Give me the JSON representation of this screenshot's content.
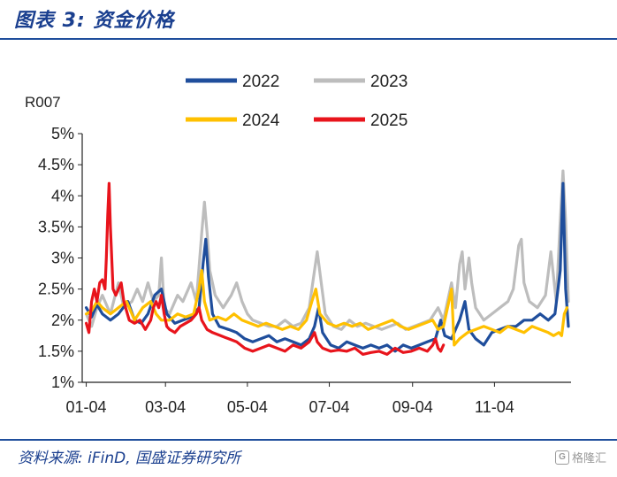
{
  "figure": {
    "title": "图表 3:  资金价格",
    "source": "资料来源:  iFinD,  国盛证券研究所",
    "watermark_icon": "G",
    "watermark_text": "格隆汇"
  },
  "chart_data": {
    "type": "line",
    "ylabel": "R007",
    "xlabel": "",
    "ylim": [
      1,
      5
    ],
    "yticks": [
      "1%",
      "1.5%",
      "2%",
      "2.5%",
      "3%",
      "3.5%",
      "4%",
      "4.5%",
      "5%"
    ],
    "x_unit": "day-of-year",
    "xlim": [
      1,
      365
    ],
    "xticks": [
      {
        "label": "01-04",
        "x": 4
      },
      {
        "label": "03-04",
        "x": 63
      },
      {
        "label": "05-04",
        "x": 124
      },
      {
        "label": "07-04",
        "x": 185
      },
      {
        "label": "09-04",
        "x": 247
      },
      {
        "label": "11-04",
        "x": 308
      }
    ],
    "legend_position": "top",
    "series": [
      {
        "name": "2022",
        "color": "#1f4e9c",
        "points": [
          [
            4,
            2.2
          ],
          [
            8,
            2.05
          ],
          [
            12,
            2.25
          ],
          [
            16,
            2.1
          ],
          [
            22,
            2.0
          ],
          [
            28,
            2.1
          ],
          [
            35,
            2.3
          ],
          [
            40,
            2.0
          ],
          [
            45,
            1.95
          ],
          [
            50,
            2.1
          ],
          [
            55,
            2.4
          ],
          [
            60,
            2.5
          ],
          [
            64,
            2.1
          ],
          [
            70,
            1.95
          ],
          [
            76,
            2.0
          ],
          [
            82,
            2.05
          ],
          [
            88,
            2.2
          ],
          [
            91,
            2.9
          ],
          [
            93,
            3.3
          ],
          [
            95,
            2.7
          ],
          [
            98,
            2.1
          ],
          [
            103,
            1.9
          ],
          [
            110,
            1.85
          ],
          [
            116,
            1.8
          ],
          [
            122,
            1.7
          ],
          [
            128,
            1.65
          ],
          [
            134,
            1.7
          ],
          [
            140,
            1.75
          ],
          [
            146,
            1.65
          ],
          [
            152,
            1.7
          ],
          [
            158,
            1.65
          ],
          [
            164,
            1.6
          ],
          [
            170,
            1.7
          ],
          [
            174,
            1.9
          ],
          [
            177,
            2.2
          ],
          [
            180,
            1.8
          ],
          [
            186,
            1.6
          ],
          [
            192,
            1.55
          ],
          [
            198,
            1.65
          ],
          [
            204,
            1.6
          ],
          [
            210,
            1.55
          ],
          [
            216,
            1.6
          ],
          [
            222,
            1.55
          ],
          [
            228,
            1.6
          ],
          [
            234,
            1.5
          ],
          [
            240,
            1.6
          ],
          [
            246,
            1.55
          ],
          [
            252,
            1.6
          ],
          [
            258,
            1.65
          ],
          [
            264,
            1.7
          ],
          [
            268,
            2.0
          ],
          [
            271,
            1.75
          ],
          [
            276,
            1.7
          ],
          [
            282,
            2.0
          ],
          [
            286,
            2.3
          ],
          [
            289,
            1.85
          ],
          [
            294,
            1.7
          ],
          [
            300,
            1.6
          ],
          [
            306,
            1.8
          ],
          [
            312,
            1.85
          ],
          [
            318,
            1.9
          ],
          [
            324,
            1.9
          ],
          [
            330,
            2.0
          ],
          [
            336,
            2.0
          ],
          [
            342,
            2.1
          ],
          [
            348,
            2.0
          ],
          [
            353,
            2.1
          ],
          [
            357,
            2.8
          ],
          [
            359,
            4.2
          ],
          [
            361,
            2.5
          ],
          [
            363,
            1.9
          ]
        ]
      },
      {
        "name": "2023",
        "color": "#bdbdbd",
        "points": [
          [
            4,
            2.1
          ],
          [
            8,
            1.9
          ],
          [
            12,
            2.2
          ],
          [
            16,
            2.4
          ],
          [
            22,
            2.1
          ],
          [
            28,
            2.6
          ],
          [
            32,
            2.2
          ],
          [
            38,
            2.3
          ],
          [
            42,
            2.5
          ],
          [
            46,
            2.3
          ],
          [
            50,
            2.6
          ],
          [
            54,
            2.3
          ],
          [
            58,
            2.4
          ],
          [
            60,
            3.0
          ],
          [
            62,
            2.2
          ],
          [
            66,
            2.1
          ],
          [
            72,
            2.4
          ],
          [
            76,
            2.3
          ],
          [
            82,
            2.6
          ],
          [
            86,
            2.3
          ],
          [
            90,
            3.4
          ],
          [
            92,
            3.9
          ],
          [
            94,
            3.4
          ],
          [
            96,
            2.8
          ],
          [
            100,
            2.4
          ],
          [
            106,
            2.2
          ],
          [
            112,
            2.4
          ],
          [
            116,
            2.6
          ],
          [
            120,
            2.3
          ],
          [
            124,
            2.1
          ],
          [
            128,
            2.0
          ],
          [
            134,
            1.95
          ],
          [
            140,
            1.9
          ],
          [
            146,
            1.9
          ],
          [
            152,
            2.0
          ],
          [
            158,
            1.9
          ],
          [
            164,
            1.95
          ],
          [
            170,
            2.2
          ],
          [
            174,
            2.8
          ],
          [
            176,
            3.1
          ],
          [
            179,
            2.6
          ],
          [
            182,
            2.1
          ],
          [
            188,
            1.9
          ],
          [
            194,
            1.85
          ],
          [
            200,
            2.0
          ],
          [
            206,
            1.9
          ],
          [
            212,
            1.95
          ],
          [
            218,
            1.9
          ],
          [
            224,
            1.85
          ],
          [
            230,
            1.9
          ],
          [
            236,
            1.95
          ],
          [
            242,
            1.85
          ],
          [
            248,
            1.9
          ],
          [
            254,
            1.95
          ],
          [
            260,
            2.0
          ],
          [
            266,
            2.2
          ],
          [
            270,
            2.0
          ],
          [
            276,
            2.6
          ],
          [
            279,
            2.2
          ],
          [
            282,
            2.9
          ],
          [
            284,
            3.1
          ],
          [
            286,
            2.5
          ],
          [
            289,
            3.0
          ],
          [
            291,
            2.6
          ],
          [
            294,
            2.2
          ],
          [
            300,
            2.0
          ],
          [
            306,
            2.1
          ],
          [
            312,
            2.2
          ],
          [
            318,
            2.3
          ],
          [
            322,
            2.5
          ],
          [
            326,
            3.2
          ],
          [
            328,
            3.3
          ],
          [
            330,
            2.6
          ],
          [
            334,
            2.3
          ],
          [
            340,
            2.2
          ],
          [
            346,
            2.4
          ],
          [
            350,
            3.1
          ],
          [
            354,
            2.3
          ],
          [
            357,
            3.6
          ],
          [
            359,
            4.4
          ],
          [
            361,
            3.6
          ],
          [
            363,
            2.3
          ]
        ]
      },
      {
        "name": "2024",
        "color": "#ffc000",
        "points": [
          [
            4,
            2.1
          ],
          [
            8,
            2.15
          ],
          [
            12,
            2.3
          ],
          [
            16,
            2.2
          ],
          [
            22,
            2.1
          ],
          [
            28,
            2.2
          ],
          [
            34,
            2.3
          ],
          [
            40,
            2.0
          ],
          [
            46,
            2.2
          ],
          [
            52,
            2.3
          ],
          [
            56,
            2.1
          ],
          [
            60,
            2.0
          ],
          [
            66,
            2.0
          ],
          [
            72,
            2.1
          ],
          [
            78,
            2.05
          ],
          [
            84,
            2.1
          ],
          [
            88,
            2.5
          ],
          [
            90,
            2.8
          ],
          [
            92,
            2.3
          ],
          [
            96,
            2.0
          ],
          [
            102,
            2.05
          ],
          [
            108,
            2.0
          ],
          [
            114,
            2.1
          ],
          [
            120,
            2.0
          ],
          [
            126,
            1.95
          ],
          [
            132,
            1.9
          ],
          [
            138,
            1.95
          ],
          [
            144,
            1.9
          ],
          [
            150,
            1.85
          ],
          [
            156,
            1.9
          ],
          [
            162,
            1.85
          ],
          [
            168,
            2.0
          ],
          [
            172,
            2.3
          ],
          [
            175,
            2.5
          ],
          [
            178,
            2.1
          ],
          [
            184,
            1.95
          ],
          [
            190,
            1.9
          ],
          [
            196,
            1.95
          ],
          [
            202,
            1.9
          ],
          [
            208,
            1.95
          ],
          [
            214,
            1.85
          ],
          [
            220,
            1.9
          ],
          [
            226,
            1.95
          ],
          [
            232,
            2.0
          ],
          [
            238,
            1.9
          ],
          [
            244,
            1.85
          ],
          [
            250,
            1.9
          ],
          [
            256,
            1.95
          ],
          [
            262,
            2.0
          ],
          [
            266,
            1.85
          ],
          [
            270,
            1.9
          ],
          [
            274,
            2.3
          ],
          [
            276,
            2.5
          ],
          [
            278,
            1.6
          ],
          [
            282,
            1.7
          ],
          [
            288,
            1.8
          ],
          [
            294,
            1.85
          ],
          [
            300,
            1.9
          ],
          [
            306,
            1.85
          ],
          [
            312,
            1.8
          ],
          [
            318,
            1.9
          ],
          [
            324,
            1.85
          ],
          [
            330,
            1.8
          ],
          [
            336,
            1.9
          ],
          [
            342,
            1.85
          ],
          [
            348,
            1.8
          ],
          [
            352,
            1.75
          ],
          [
            356,
            1.8
          ],
          [
            358,
            1.75
          ],
          [
            360,
            2.1
          ],
          [
            362,
            2.2
          ]
        ]
      },
      {
        "name": "2025",
        "color": "#e8141c",
        "points": [
          [
            4,
            1.95
          ],
          [
            6,
            1.8
          ],
          [
            8,
            2.3
          ],
          [
            10,
            2.5
          ],
          [
            12,
            2.3
          ],
          [
            14,
            2.6
          ],
          [
            16,
            2.65
          ],
          [
            18,
            2.5
          ],
          [
            19,
            3.0
          ],
          [
            20,
            3.7
          ],
          [
            21,
            4.2
          ],
          [
            22,
            3.5
          ],
          [
            24,
            2.5
          ],
          [
            26,
            2.4
          ],
          [
            28,
            2.5
          ],
          [
            30,
            2.6
          ],
          [
            32,
            2.3
          ],
          [
            36,
            2.0
          ],
          [
            40,
            1.95
          ],
          [
            44,
            2.0
          ],
          [
            48,
            1.85
          ],
          [
            52,
            2.0
          ],
          [
            54,
            2.2
          ],
          [
            56,
            2.3
          ],
          [
            58,
            2.2
          ],
          [
            60,
            2.4
          ],
          [
            62,
            2.1
          ],
          [
            64,
            1.9
          ],
          [
            66,
            1.85
          ],
          [
            70,
            1.8
          ],
          [
            74,
            1.9
          ],
          [
            78,
            1.95
          ],
          [
            82,
            2.0
          ],
          [
            86,
            2.1
          ],
          [
            88,
            2.2
          ],
          [
            90,
            2.0
          ],
          [
            94,
            1.85
          ],
          [
            98,
            1.8
          ],
          [
            104,
            1.75
          ],
          [
            110,
            1.7
          ],
          [
            116,
            1.65
          ],
          [
            122,
            1.55
          ],
          [
            128,
            1.5
          ],
          [
            134,
            1.55
          ],
          [
            140,
            1.6
          ],
          [
            146,
            1.55
          ],
          [
            152,
            1.5
          ],
          [
            158,
            1.6
          ],
          [
            164,
            1.55
          ],
          [
            170,
            1.65
          ],
          [
            174,
            1.8
          ],
          [
            176,
            1.65
          ],
          [
            180,
            1.55
          ],
          [
            186,
            1.5
          ],
          [
            192,
            1.52
          ],
          [
            198,
            1.5
          ],
          [
            204,
            1.55
          ],
          [
            210,
            1.45
          ],
          [
            216,
            1.48
          ],
          [
            222,
            1.5
          ],
          [
            228,
            1.45
          ],
          [
            234,
            1.55
          ],
          [
            240,
            1.48
          ],
          [
            246,
            1.5
          ],
          [
            252,
            1.55
          ],
          [
            258,
            1.5
          ],
          [
            262,
            1.6
          ],
          [
            264,
            1.7
          ],
          [
            266,
            1.55
          ],
          [
            268,
            1.5
          ],
          [
            270,
            1.6
          ]
        ]
      }
    ]
  }
}
